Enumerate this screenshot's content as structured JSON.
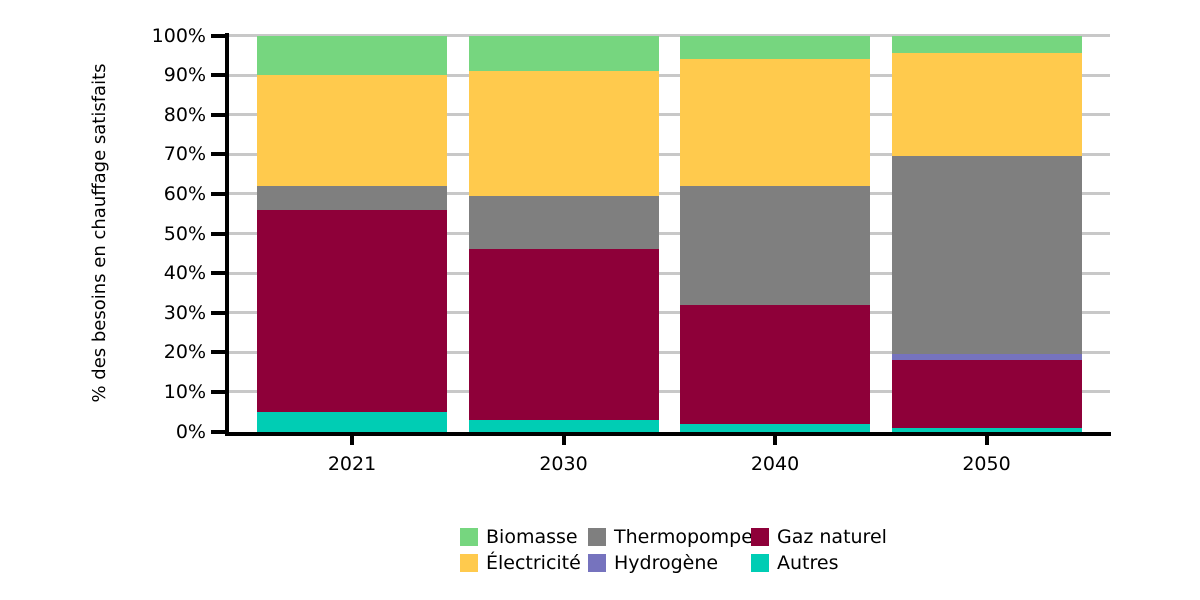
{
  "chart_data": {
    "type": "bar",
    "stacked": true,
    "percent_stacked": true,
    "title": "",
    "xlabel": "",
    "ylabel": "% des besoins en chauffage satisfaits",
    "categories": [
      "2021",
      "2030",
      "2040",
      "2050"
    ],
    "series": [
      {
        "name": "Autres",
        "color": "#00CDB4",
        "values": [
          5,
          3,
          2,
          1
        ]
      },
      {
        "name": "Gaz naturel",
        "color": "#8E0039",
        "values": [
          51,
          43,
          30,
          17
        ]
      },
      {
        "name": "Hydrogène",
        "color": "#7673BE",
        "values": [
          0,
          0,
          0,
          1.5
        ]
      },
      {
        "name": "Thermopompe",
        "color": "#7F7F7F",
        "values": [
          6,
          13.5,
          30,
          50
        ]
      },
      {
        "name": "Électricité",
        "color": "#FFCA4D",
        "values": [
          28,
          31.5,
          32,
          26
        ]
      },
      {
        "name": "Biomasse",
        "color": "#76D67F",
        "values": [
          10,
          9,
          6,
          4.5
        ]
      }
    ],
    "y_ticks": [
      "0%",
      "10%",
      "20%",
      "30%",
      "40%",
      "50%",
      "60%",
      "70%",
      "80%",
      "90%",
      "100%"
    ],
    "ylim": [
      0,
      100
    ],
    "grid": "horizontal",
    "gridline_color": "#c8c8c8",
    "axis_color": "#000000",
    "legend": {
      "position": "bottom",
      "items": [
        {
          "label": "Biomasse",
          "color": "#76D67F"
        },
        {
          "label": "Thermopompe",
          "color": "#7F7F7F"
        },
        {
          "label": "Gaz naturel",
          "color": "#8E0039"
        },
        {
          "label": "Électricité",
          "color": "#FFCA4D"
        },
        {
          "label": "Hydrogène",
          "color": "#7673BE"
        },
        {
          "label": "Autres",
          "color": "#00CDB4"
        }
      ]
    }
  }
}
